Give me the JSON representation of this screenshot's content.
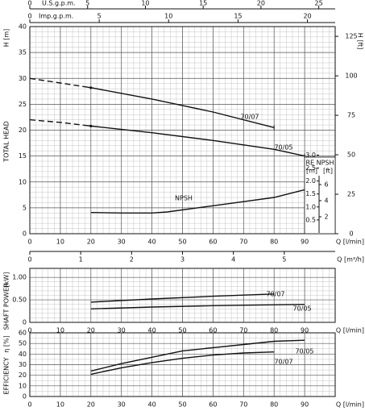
{
  "chart_data": [
    {
      "type": "line",
      "title": "TOTAL HEAD",
      "ylabel": "H [m]",
      "y2label": "H [ft]",
      "xlabel": "Q [l/min]",
      "xlim": [
        0,
        100
      ],
      "xticks": [
        0,
        10,
        20,
        30,
        40,
        50,
        60,
        70,
        80,
        90
      ],
      "ylim": [
        0,
        40
      ],
      "yticks": [
        0,
        5,
        10,
        15,
        20,
        25,
        30,
        35,
        40
      ],
      "y2lim": [
        0,
        131.2
      ],
      "y2ticks": [
        0,
        25,
        50,
        75,
        100,
        125
      ],
      "grid": true,
      "series": [
        {
          "name": "70/07",
          "color": "#111111",
          "x": [
            0,
            10,
            20,
            40,
            60,
            80
          ],
          "values": [
            30,
            29.1,
            28.2,
            26,
            23.5,
            20.5
          ]
        },
        {
          "name": "70/05",
          "color": "#111111",
          "x": [
            0,
            10,
            20,
            40,
            60,
            80,
            90
          ],
          "values": [
            22,
            21.5,
            20.8,
            19.5,
            18,
            16.3,
            15
          ]
        },
        {
          "name": "NPSH",
          "color": "#111111",
          "x": [
            20,
            30,
            40,
            45,
            60,
            70,
            80,
            90
          ],
          "values": [
            4.1,
            4.0,
            4.0,
            4.2,
            5.4,
            6.2,
            7,
            8.5
          ]
        }
      ],
      "top_axes": [
        {
          "label": "U.S.g.p.m.",
          "xlim": [
            0,
            26.42
          ],
          "xticks": [
            0,
            5,
            10,
            15,
            20,
            25
          ]
        },
        {
          "label": "Imp.g.p.m.",
          "xlim": [
            0,
            22
          ],
          "xticks": [
            0,
            5,
            10,
            15,
            20
          ]
        }
      ],
      "flow_axis": {
        "label": "Q [m³/h]",
        "xlim": [
          0,
          6
        ],
        "xticks": [
          0,
          1,
          2,
          3,
          4,
          5
        ]
      },
      "npsh_scale": {
        "title": "RE  NPSH",
        "units": [
          "[m]",
          "[ft]"
        ],
        "ylim": [
          0,
          3.2
        ],
        "yticks": [
          0.5,
          {
            "value": 1,
            "label": "1.0"
          },
          1.5,
          {
            "value": 2,
            "label": "2.0"
          },
          2.5,
          {
            "value": 3,
            "label": "3.0"
          }
        ],
        "y2lim": [
          0,
          10.3
        ],
        "y2ticks": [
          2,
          4,
          6
        ]
      }
    },
    {
      "type": "line",
      "title": "SHAFT POWER",
      "ylabel": "[kW]",
      "xlabel": "Q [l/min]",
      "xlim": [
        0,
        100
      ],
      "xticks": [
        0,
        10,
        20,
        30,
        40,
        50,
        60,
        70,
        80,
        90
      ],
      "ylim": [
        0,
        1.2
      ],
      "yticks": [
        0,
        {
          "value": 0.5,
          "label": "0.50"
        },
        {
          "value": 1,
          "label": "1.00"
        }
      ],
      "grid": true,
      "series": [
        {
          "name": "70/07",
          "color": "#111111",
          "x": [
            20,
            40,
            60,
            80
          ],
          "values": [
            0.45,
            0.52,
            0.58,
            0.63
          ]
        },
        {
          "name": "70/05",
          "color": "#111111",
          "x": [
            20,
            40,
            60,
            80,
            90
          ],
          "values": [
            0.3,
            0.34,
            0.37,
            0.39,
            0.4
          ]
        }
      ]
    },
    {
      "type": "line",
      "title": "EFFICIENCY",
      "ylabel": "η [%]",
      "xlabel": "Q [l/min]",
      "xlim": [
        0,
        100
      ],
      "xticks": [
        0,
        10,
        20,
        30,
        40,
        50,
        60,
        70,
        80,
        90
      ],
      "ylim": [
        0,
        60
      ],
      "yticks": [
        0,
        10,
        20,
        30,
        40,
        50,
        60
      ],
      "grid": true,
      "series": [
        {
          "name": "70/05",
          "color": "#111111",
          "x": [
            20,
            30,
            40,
            50,
            60,
            70,
            80,
            90
          ],
          "values": [
            24,
            31,
            37,
            43,
            46,
            49,
            52,
            53
          ]
        },
        {
          "name": "70/07",
          "color": "#111111",
          "x": [
            20,
            30,
            40,
            50,
            60,
            70,
            80
          ],
          "values": [
            21,
            27,
            32,
            36,
            39,
            41,
            42
          ]
        }
      ]
    }
  ]
}
